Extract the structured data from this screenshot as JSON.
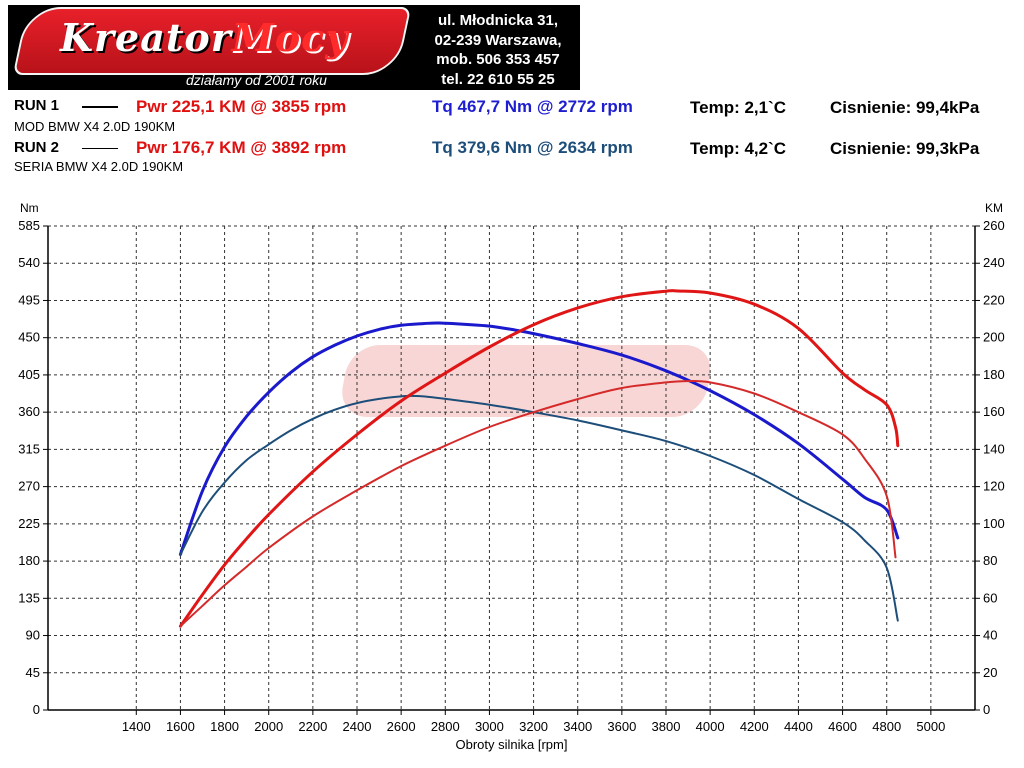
{
  "logo": {
    "text_white": "Kreator",
    "text_red": "Mocy",
    "slogan": "działamy od 2001 roku"
  },
  "address": {
    "line1": "ul. Młodnicka 31,",
    "line2": "02-239  Warszawa,",
    "line3": "mob.  506 353 457",
    "line4": "tel.  22 610 55 25"
  },
  "runs": [
    {
      "label": "RUN 1",
      "pwr": "Pwr  225,1 KM @ 3855 rpm",
      "tq": "Tq 467,7 Nm @ 2772 rpm",
      "temp": "Temp: 2,1`C",
      "pressure": "Cisnienie: 99,4kPa",
      "description": "MOD BMW X4 2.0D 190KM"
    },
    {
      "label": "RUN 2",
      "pwr": "Pwr  176,7 KM @ 3892 rpm",
      "tq": "Tq 379,6 Nm @ 2634 rpm",
      "temp": "Temp: 4,2`C",
      "pressure": "Cisnienie: 99,3kPa",
      "description": "SERIA BMW X4 2.0D 190KM"
    }
  ],
  "colors": {
    "run1_power": "#e01515",
    "run2_power": "#d42a2a",
    "run1_torque": "#1a1acc",
    "run2_torque": "#1d4e7a"
  },
  "chart_data": {
    "type": "line",
    "xlabel": "Obroty silnika [rpm]",
    "ylabel_left": "Nm",
    "ylabel_right": "KM",
    "xlim": [
      1000,
      5200
    ],
    "ylim_left": [
      0,
      585
    ],
    "ylim_right": [
      0,
      260
    ],
    "x_ticks": [
      1400,
      1600,
      1800,
      2000,
      2200,
      2400,
      2600,
      2800,
      3000,
      3200,
      3400,
      3600,
      3800,
      4000,
      4200,
      4400,
      4600,
      4800,
      5000
    ],
    "y_ticks_left": [
      0,
      45,
      90,
      135,
      180,
      225,
      270,
      315,
      360,
      405,
      450,
      495,
      540,
      585
    ],
    "y_ticks_right": [
      0,
      20,
      40,
      60,
      80,
      100,
      120,
      140,
      160,
      180,
      200,
      220,
      240,
      260
    ],
    "grid": true,
    "series": [
      {
        "axis": "left",
        "color": "#1a1acc",
        "width": 3,
        "x": [
          1600,
          1700,
          1800,
          1900,
          2000,
          2100,
          2200,
          2300,
          2400,
          2500,
          2600,
          2700,
          2772,
          2900,
          3000,
          3100,
          3200,
          3400,
          3600,
          3800,
          4000,
          4200,
          4400,
          4600,
          4700,
          4800,
          4850
        ],
        "y": [
          188,
          265,
          318,
          355,
          384,
          408,
          427,
          441,
          452,
          460,
          465,
          467,
          467.7,
          466,
          464,
          460,
          455,
          443,
          429,
          410,
          386,
          357,
          322,
          279,
          257,
          242,
          208
        ]
      },
      {
        "axis": "left",
        "color": "#1d4e7a",
        "width": 2,
        "x": [
          1600,
          1700,
          1800,
          1900,
          2000,
          2100,
          2200,
          2300,
          2400,
          2500,
          2600,
          2634,
          2700,
          2800,
          3000,
          3200,
          3400,
          3600,
          3800,
          4000,
          4200,
          4400,
          4600,
          4700,
          4800,
          4850
        ],
        "y": [
          188,
          240,
          275,
          302,
          321,
          338,
          352,
          363,
          371,
          376,
          379,
          379.6,
          379,
          376,
          369,
          360,
          350,
          338,
          325,
          307,
          284,
          255,
          227,
          205,
          172,
          108
        ]
      },
      {
        "axis": "right",
        "color": "#e01515",
        "width": 3,
        "x": [
          1600,
          1700,
          1800,
          1900,
          2000,
          2200,
          2400,
          2600,
          2800,
          3000,
          3200,
          3400,
          3600,
          3800,
          3855,
          4000,
          4200,
          4400,
          4600,
          4700,
          4800,
          4840,
          4850
        ],
        "y": [
          45,
          62,
          78,
          92,
          105,
          128,
          148,
          166,
          181,
          195,
          207,
          216,
          222,
          225,
          225.1,
          224,
          218,
          205,
          181,
          172,
          164,
          152,
          142
        ]
      },
      {
        "axis": "right",
        "color": "#d42a2a",
        "width": 2,
        "x": [
          1600,
          1700,
          1800,
          1900,
          2000,
          2200,
          2400,
          2600,
          2800,
          3000,
          3200,
          3400,
          3600,
          3800,
          3892,
          4000,
          4200,
          4400,
          4600,
          4700,
          4800,
          4840
        ],
        "y": [
          45,
          56,
          67,
          77,
          87,
          104,
          118,
          131,
          142,
          152,
          160,
          167,
          173,
          176,
          176.7,
          176,
          170,
          160,
          148,
          135,
          115,
          82
        ]
      }
    ]
  }
}
